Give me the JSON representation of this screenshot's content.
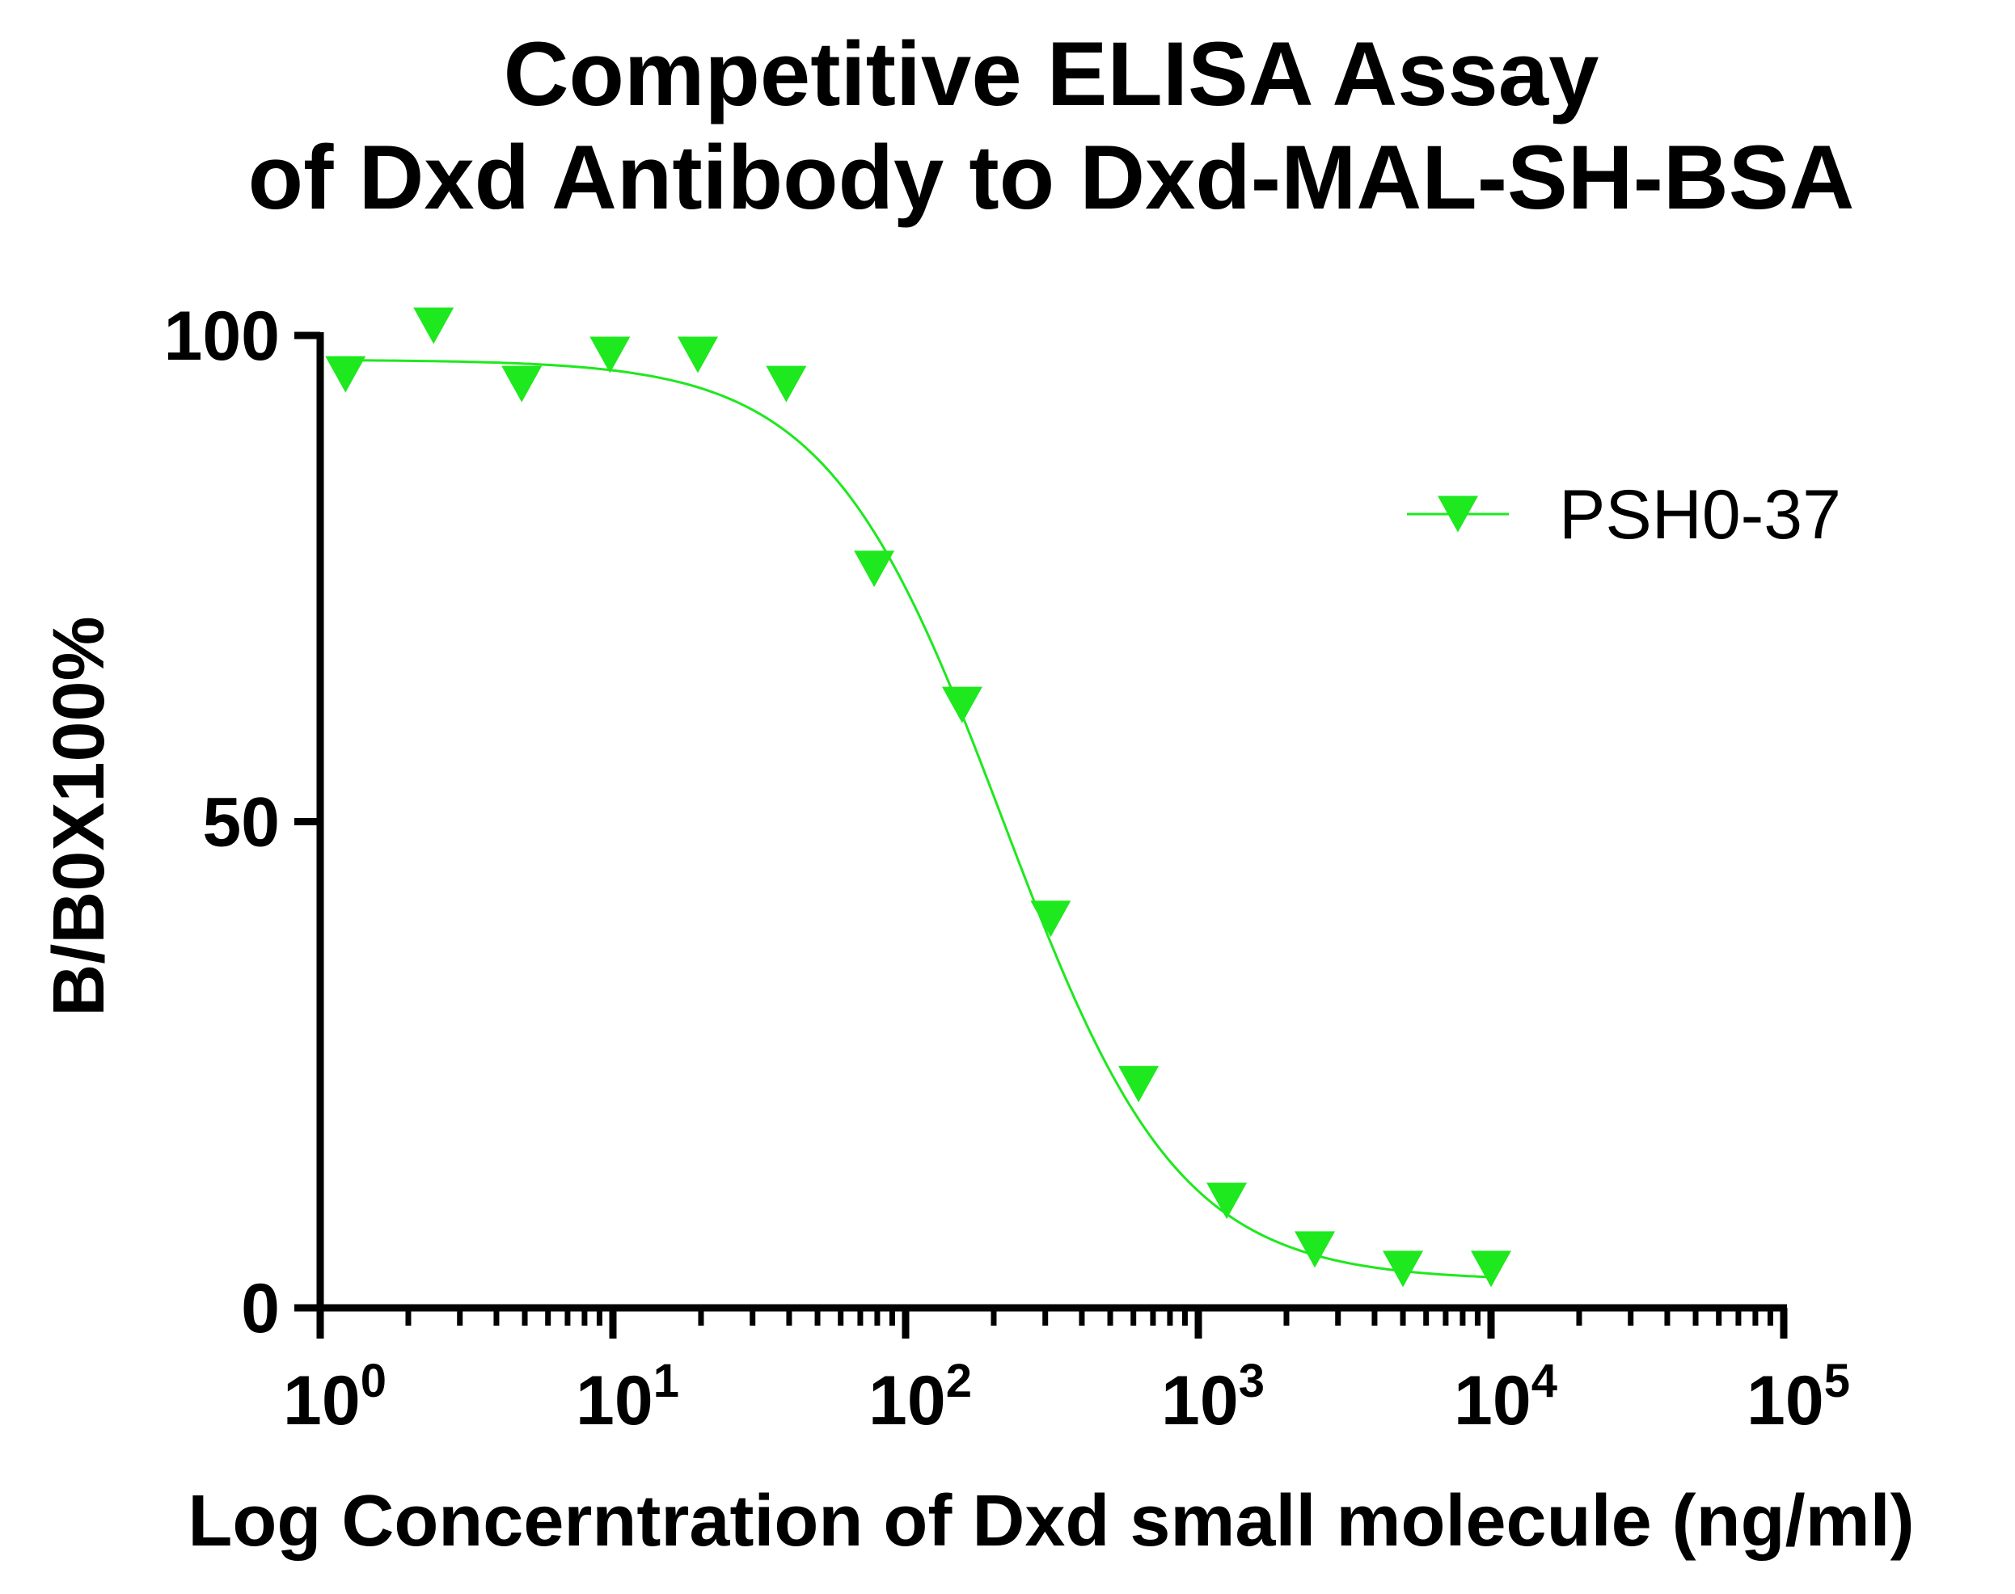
{
  "chart_data": {
    "type": "scatter",
    "title_line1": "Competitive ELISA Assay",
    "title_line2": "of  Dxd Antibody to Dxd-MAL-SH-BSA",
    "xlabel": "Log Concerntration of Dxd small molecule (ng/ml)",
    "ylabel": "B/B0X100%",
    "x_scale": "log",
    "xlim": [
      1,
      100000
    ],
    "ylim": [
      0,
      100
    ],
    "x_ticks": [
      {
        "base": "10",
        "exp": "0"
      },
      {
        "base": "10",
        "exp": "1"
      },
      {
        "base": "10",
        "exp": "2"
      },
      {
        "base": "10",
        "exp": "3"
      },
      {
        "base": "10",
        "exp": "4"
      },
      {
        "base": "10",
        "exp": "5"
      }
    ],
    "y_ticks": [
      "0",
      "50",
      "100"
    ],
    "grid": false,
    "legend_position": "top-right",
    "series": [
      {
        "name": "PSH0-37",
        "color": "#1ee81e",
        "marker": "triangle-down",
        "fit": "four-parameter-logistic",
        "x": [
          1.22,
          2.44,
          4.88,
          9.77,
          19.5,
          39.1,
          78.1,
          156,
          313,
          625,
          1250,
          2500,
          5000,
          10000
        ],
        "y": [
          96,
          101,
          95,
          98,
          98,
          95,
          76,
          62,
          40,
          23,
          11,
          6,
          4,
          4
        ]
      }
    ]
  }
}
